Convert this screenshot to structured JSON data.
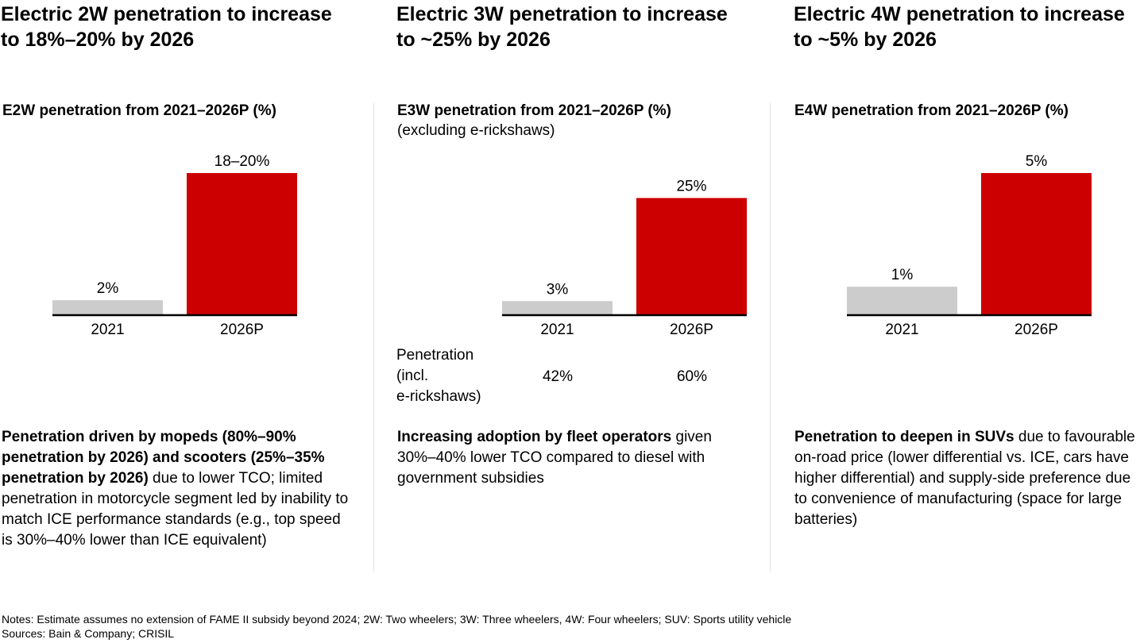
{
  "colors": {
    "accent": "#cc0000",
    "base_bar": "#cccccc",
    "axis": "#000000",
    "divider": "#e2e2e2"
  },
  "panels": [
    {
      "headline": "Electric 2W penetration to increase to 18%–20% by 2026",
      "chart_title": "E2W penetration from 2021–2026P (%)",
      "takeaway_bold": "Penetration driven by mopeds (80%–90% penetration by 2026) and scooters (25%–35% penetration by 2026)",
      "takeaway_rest": " due to lower TCO; limited penetration in motorcycle segment led by inability to match ICE performance standards (e.g., top speed is 30%–40% lower than ICE equivalent)"
    },
    {
      "headline": "Electric 3W penetration to increase to ~25% by 2026",
      "chart_title": "E3W penetration from 2021–2026P (%)",
      "chart_subtitle": "(excluding e-rickshaws)",
      "extra_row": {
        "label_lines": [
          "Penetration",
          "(incl.",
          "e-rickshaws)"
        ],
        "values": [
          "42%",
          "60%"
        ]
      },
      "takeaway_bold": "Increasing adoption by fleet operators",
      "takeaway_rest": " given 30%–40% lower TCO compared to diesel with government subsidies"
    },
    {
      "headline": "Electric 4W penetration to increase to ~5% by 2026",
      "chart_title": "E4W penetration from 2021–2026P (%)",
      "takeaway_bold": "Penetration to deepen in SUVs",
      "takeaway_rest": " due to favourable on-road price (lower differential vs. ICE, cars have higher differential) and supply-side preference due to convenience of manufacturing (space for large batteries)"
    }
  ],
  "chart_data": [
    {
      "type": "bar",
      "title": "E2W penetration from 2021–2026P (%)",
      "categories": [
        "2021",
        "2026P"
      ],
      "values": [
        2,
        19
      ],
      "value_range": [
        null,
        [
          18,
          20
        ]
      ],
      "data_labels": [
        "2%",
        "18–20%"
      ],
      "xlabel": "",
      "ylabel": "",
      "ylim": [
        0,
        19
      ],
      "grid": false
    },
    {
      "type": "bar",
      "title": "E3W penetration from 2021–2026P (%)",
      "subtitle": "(excluding e-rickshaws)",
      "categories": [
        "2021",
        "2026P"
      ],
      "values": [
        3,
        25
      ],
      "data_labels": [
        "3%",
        "25%"
      ],
      "xlabel": "",
      "ylabel": "",
      "ylim": [
        0,
        31
      ],
      "grid": false
    },
    {
      "type": "bar",
      "title": "E4W penetration from 2021–2026P (%)",
      "categories": [
        "2021",
        "2026P"
      ],
      "values": [
        1,
        5
      ],
      "data_labels": [
        "1%",
        "5%"
      ],
      "xlabel": "",
      "ylabel": "",
      "ylim": [
        0,
        5
      ],
      "grid": false
    }
  ],
  "footer": {
    "notes": "Notes: Estimate assumes no extension of FAME II subsidy beyond 2024; 2W: Two wheelers; 3W: Three wheelers, 4W: Four wheelers; SUV: Sports utility vehicle",
    "sources": "Sources: Bain & Company; CRISIL"
  }
}
